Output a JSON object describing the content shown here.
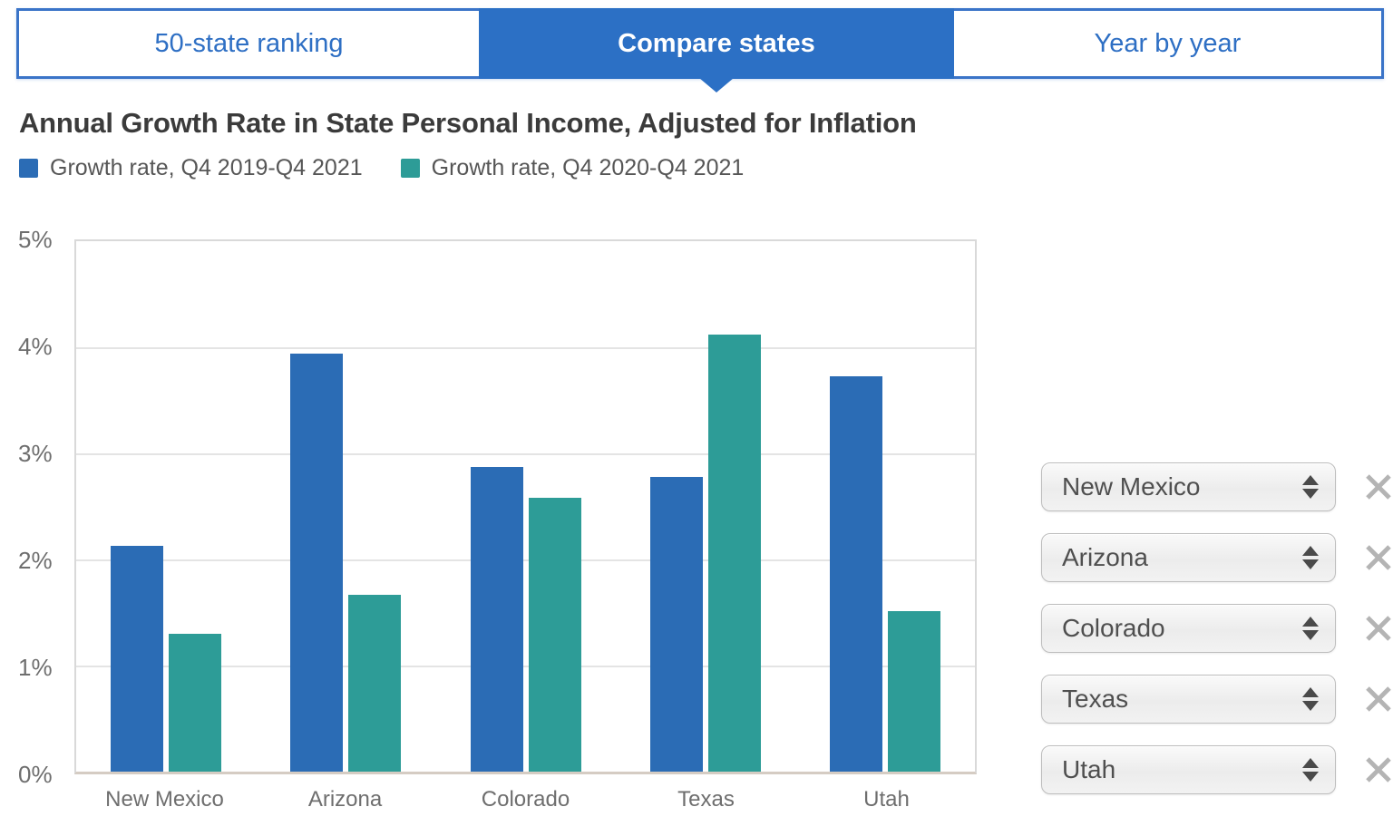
{
  "tabs": {
    "items": [
      {
        "label": "50-state ranking",
        "active": false
      },
      {
        "label": "Compare states",
        "active": true
      },
      {
        "label": "Year by year",
        "active": false
      }
    ]
  },
  "title": "Annual Growth Rate in State Personal Income, Adjusted for Inflation",
  "legend": {
    "items": [
      {
        "label": "Growth rate, Q4 2019-Q4 2021",
        "color": "#2b6cb5"
      },
      {
        "label": "Growth rate, Q4 2020-Q4 2021",
        "color": "#2d9c97"
      }
    ]
  },
  "chart_data": {
    "type": "bar",
    "title": "Annual Growth Rate in State Personal Income, Adjusted for Inflation",
    "categories": [
      "New Mexico",
      "Arizona",
      "Colorado",
      "Texas",
      "Utah"
    ],
    "series": [
      {
        "name": "Growth rate, Q4 2019-Q4 2021",
        "color": "#2b6cb5",
        "values": [
          2.13,
          3.94,
          2.87,
          2.78,
          3.73
        ]
      },
      {
        "name": "Growth rate, Q4 2020-Q4 2021",
        "color": "#2d9c97",
        "values": [
          1.3,
          1.67,
          2.58,
          4.12,
          1.51
        ]
      }
    ],
    "ylabel": "",
    "xlabel": "",
    "ylim": [
      0,
      5
    ],
    "yticks": [
      {
        "value": 5,
        "label": "5%"
      },
      {
        "value": 4,
        "label": "4%"
      },
      {
        "value": 3,
        "label": "3%"
      },
      {
        "value": 2,
        "label": "2%"
      },
      {
        "value": 1,
        "label": "1%"
      },
      {
        "value": 0,
        "label": "0%"
      }
    ],
    "grid": true,
    "legend_position": "top-left"
  },
  "state_selectors": [
    {
      "value": "New Mexico"
    },
    {
      "value": "Arizona"
    },
    {
      "value": "Colorado"
    },
    {
      "value": "Texas"
    },
    {
      "value": "Utah"
    }
  ],
  "colors": {
    "tab_active_bg": "#2c70c5",
    "tab_text": "#2e6fc4",
    "bar_blue": "#2b6cb5",
    "bar_teal": "#2d9c97",
    "axis_text": "#6e6e6e",
    "baseline": "#d5ccc3",
    "close_icon": "#b4b4b4"
  }
}
